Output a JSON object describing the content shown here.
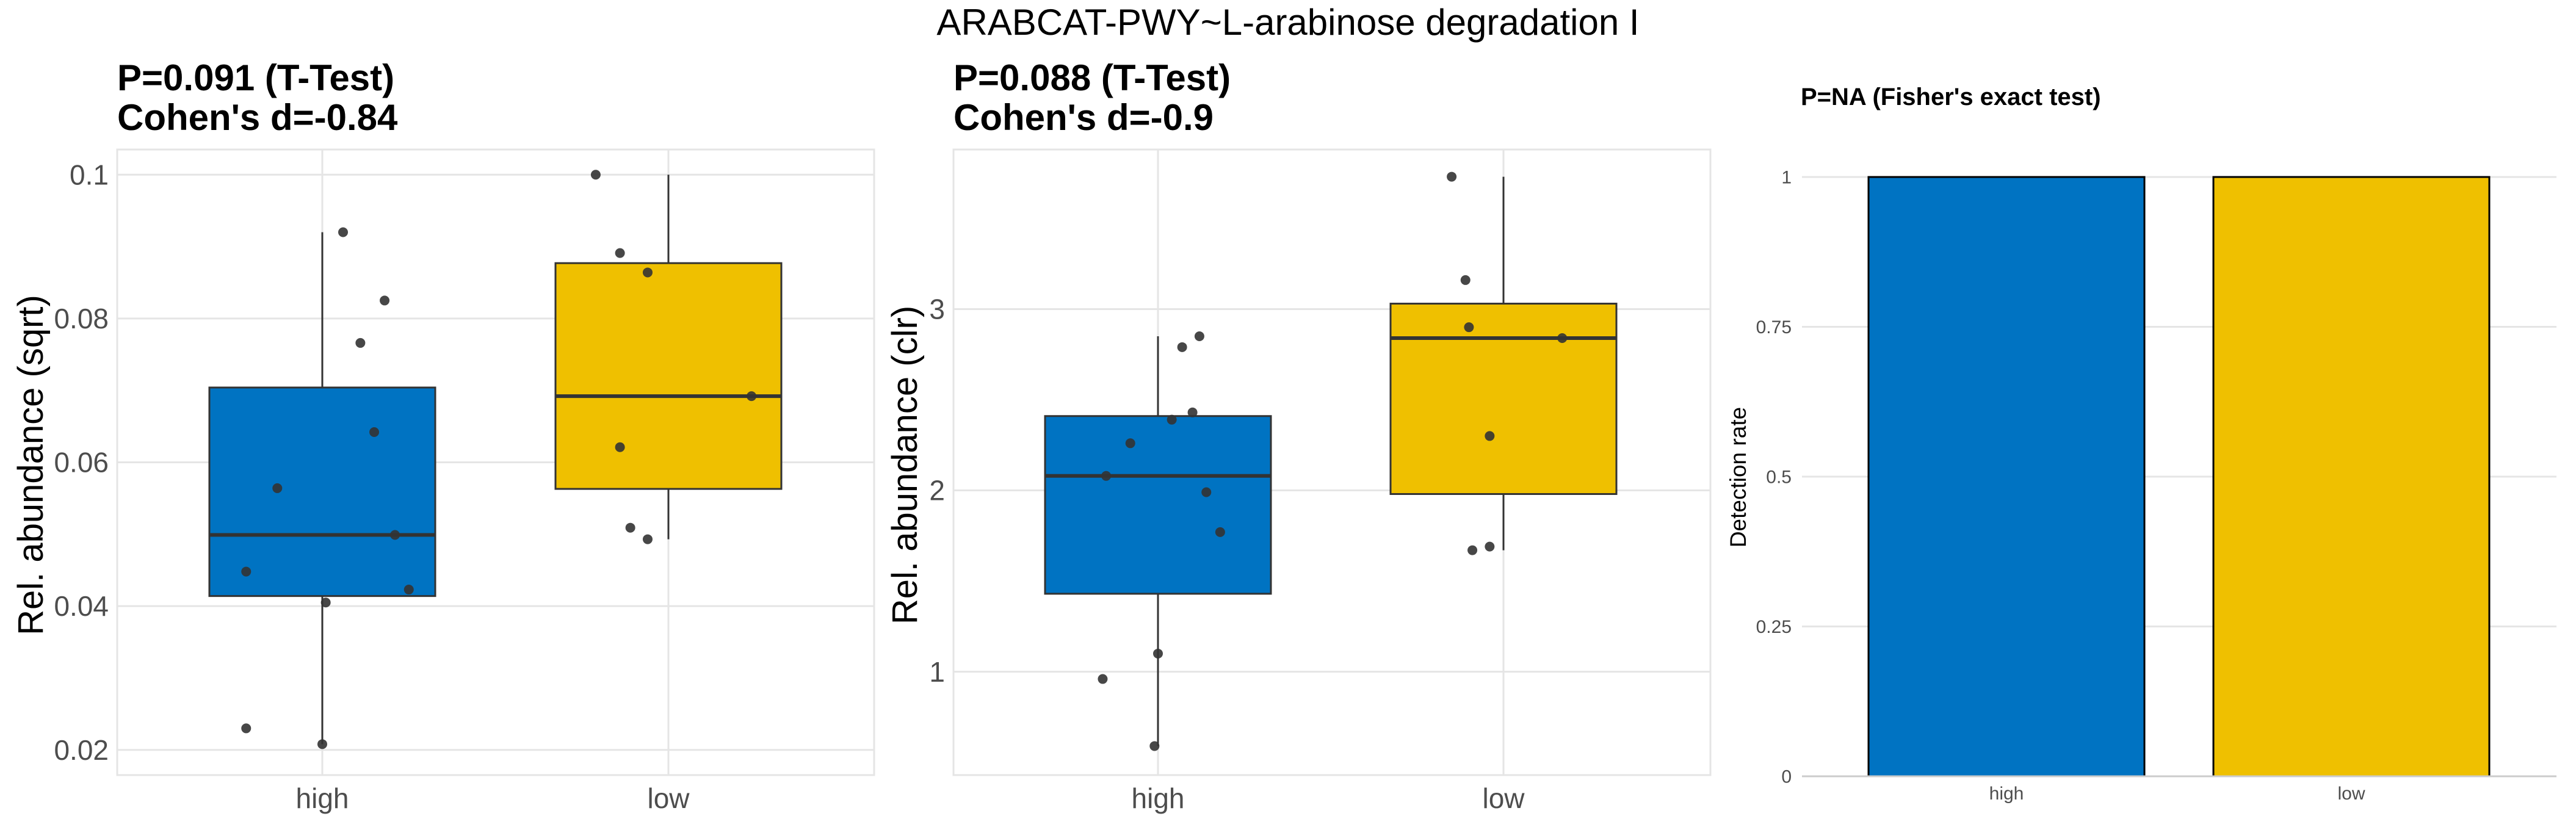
{
  "figure": {
    "title": "ARABCAT-PWY~L-arabinose degradation I"
  },
  "colors": {
    "high": "#0073C2",
    "low": "#EFC000",
    "grid": "#E5E5E5",
    "axis_text": "#4D4D4D",
    "point": "#333333"
  },
  "chart_data": [
    {
      "type": "box",
      "title_line1": "P=0.091 (T-Test)",
      "title_line2": "Cohen's d=-0.84",
      "ylabel": "Rel. abundance (sqrt)",
      "xlabel": "",
      "categories": [
        "high",
        "low"
      ],
      "ylim": [
        0.0165,
        0.1035
      ],
      "yticks": [
        0.02,
        0.04,
        0.06,
        0.08,
        0.1
      ],
      "ytick_labels": [
        "0.02",
        "0.04",
        "0.06",
        "0.08",
        "0.1"
      ],
      "boxes": [
        {
          "group": "high",
          "q1": 0.0414,
          "median": 0.0499,
          "q3": 0.0704,
          "whisker_low": 0.0208,
          "whisker_high": 0.092
        },
        {
          "group": "low",
          "q1": 0.0563,
          "median": 0.0692,
          "q3": 0.0877,
          "whisker_low": 0.0493,
          "whisker_high": 0.1
        }
      ],
      "points": [
        {
          "group": "high",
          "jitter": 0.06,
          "y": 0.092
        },
        {
          "group": "high",
          "jitter": 0.18,
          "y": 0.0825
        },
        {
          "group": "high",
          "jitter": 0.11,
          "y": 0.0766
        },
        {
          "group": "high",
          "jitter": 0.15,
          "y": 0.0642
        },
        {
          "group": "high",
          "jitter": -0.13,
          "y": 0.0564
        },
        {
          "group": "high",
          "jitter": 0.21,
          "y": 0.0499
        },
        {
          "group": "high",
          "jitter": -0.22,
          "y": 0.0448
        },
        {
          "group": "high",
          "jitter": 0.25,
          "y": 0.0423
        },
        {
          "group": "high",
          "jitter": 0.01,
          "y": 0.0405
        },
        {
          "group": "high",
          "jitter": -0.22,
          "y": 0.023
        },
        {
          "group": "high",
          "jitter": 0.0,
          "y": 0.0208
        },
        {
          "group": "low",
          "jitter": -0.21,
          "y": 0.1
        },
        {
          "group": "low",
          "jitter": -0.14,
          "y": 0.0891
        },
        {
          "group": "low",
          "jitter": -0.06,
          "y": 0.0864
        },
        {
          "group": "low",
          "jitter": 0.24,
          "y": 0.0692
        },
        {
          "group": "low",
          "jitter": -0.14,
          "y": 0.0621
        },
        {
          "group": "low",
          "jitter": -0.11,
          "y": 0.0509
        },
        {
          "group": "low",
          "jitter": -0.06,
          "y": 0.0493
        }
      ]
    },
    {
      "type": "box",
      "title_line1": "P=0.088 (T-Test)",
      "title_line2": "Cohen's d=-0.9",
      "ylabel": "Rel. abundance (clr)",
      "xlabel": "",
      "categories": [
        "high",
        "low"
      ],
      "ylim": [
        0.43,
        3.88
      ],
      "yticks": [
        1,
        2,
        3
      ],
      "ytick_labels": [
        "1",
        "2",
        "3"
      ],
      "boxes": [
        {
          "group": "high",
          "q1": 1.43,
          "median": 2.08,
          "q3": 2.41,
          "whisker_low": 0.59,
          "whisker_high": 2.85
        },
        {
          "group": "low",
          "q1": 1.98,
          "median": 2.84,
          "q3": 3.03,
          "whisker_low": 1.67,
          "whisker_high": 3.73
        }
      ],
      "points": [
        {
          "group": "high",
          "jitter": 0.12,
          "y": 2.85
        },
        {
          "group": "high",
          "jitter": 0.07,
          "y": 2.79
        },
        {
          "group": "high",
          "jitter": 0.1,
          "y": 2.43
        },
        {
          "group": "high",
          "jitter": 0.04,
          "y": 2.39
        },
        {
          "group": "high",
          "jitter": -0.08,
          "y": 2.26
        },
        {
          "group": "high",
          "jitter": -0.15,
          "y": 2.08
        },
        {
          "group": "high",
          "jitter": 0.14,
          "y": 1.99
        },
        {
          "group": "high",
          "jitter": 0.18,
          "y": 1.77
        },
        {
          "group": "high",
          "jitter": 0.0,
          "y": 1.1
        },
        {
          "group": "high",
          "jitter": -0.16,
          "y": 0.96
        },
        {
          "group": "high",
          "jitter": -0.01,
          "y": 0.59
        },
        {
          "group": "low",
          "jitter": -0.15,
          "y": 3.73
        },
        {
          "group": "low",
          "jitter": -0.11,
          "y": 3.16
        },
        {
          "group": "low",
          "jitter": -0.1,
          "y": 2.9
        },
        {
          "group": "low",
          "jitter": 0.17,
          "y": 2.84
        },
        {
          "group": "low",
          "jitter": -0.04,
          "y": 2.3
        },
        {
          "group": "low",
          "jitter": -0.04,
          "y": 1.69
        },
        {
          "group": "low",
          "jitter": -0.09,
          "y": 1.67
        }
      ]
    },
    {
      "type": "bar",
      "title": "P=NA (Fisher's exact test)",
      "ylabel": "Detection rate",
      "xlabel": "",
      "categories": [
        "high",
        "low"
      ],
      "values": [
        1,
        1
      ],
      "ylim": [
        0,
        1
      ],
      "yticks": [
        0,
        0.25,
        0.5,
        0.75,
        1
      ],
      "ytick_labels": [
        "0",
        "0.25",
        "0.5",
        "0.75",
        "1"
      ]
    }
  ]
}
